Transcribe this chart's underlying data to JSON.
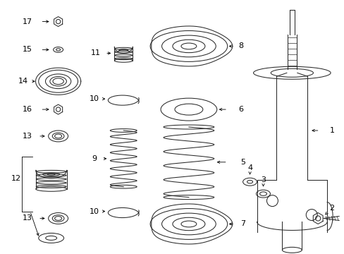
{
  "bg_color": "#ffffff",
  "line_color": "#2a2a2a",
  "figsize": [
    4.89,
    3.6
  ],
  "dpi": 100,
  "lw": 0.75
}
